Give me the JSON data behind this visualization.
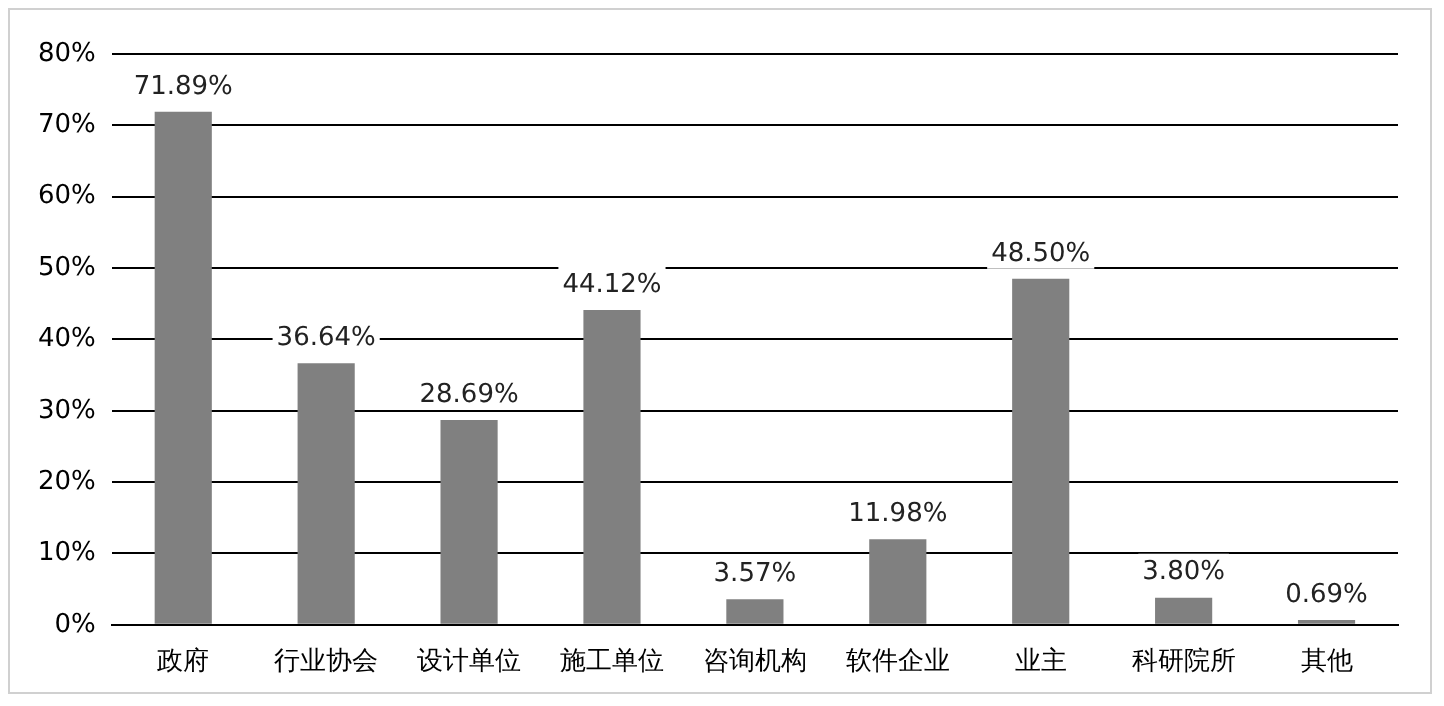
{
  "chart_data": {
    "type": "bar",
    "categories": [
      "政府",
      "行业协会",
      "设计单位",
      "施工单位",
      "咨询机构",
      "软件企业",
      "业主",
      "科研院所",
      "其他"
    ],
    "values": [
      71.89,
      36.64,
      28.69,
      44.12,
      3.57,
      11.98,
      48.5,
      3.8,
      0.69
    ],
    "value_labels": [
      "71.89%",
      "36.64%",
      "28.69%",
      "44.12%",
      "3.57%",
      "11.98%",
      "48.50%",
      "3.80%",
      "0.69%"
    ],
    "color": "#808080",
    "ylim": [
      0,
      80
    ],
    "yticks": [
      {
        "value": 0,
        "label": "0%"
      },
      {
        "value": 10,
        "label": "10%"
      },
      {
        "value": 20,
        "label": "20%"
      },
      {
        "value": 30,
        "label": "30%"
      },
      {
        "value": 40,
        "label": "40%"
      },
      {
        "value": 50,
        "label": "50%"
      },
      {
        "value": 60,
        "label": "60%"
      },
      {
        "value": 70,
        "label": "70%"
      },
      {
        "value": 80,
        "label": "80%"
      }
    ],
    "grid": "y",
    "legend": false
  }
}
